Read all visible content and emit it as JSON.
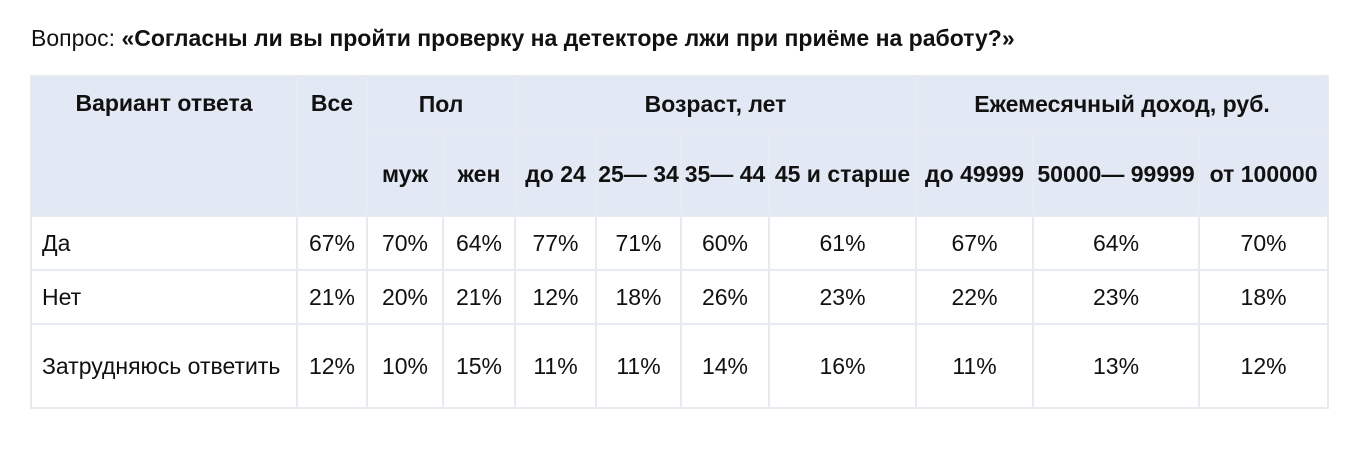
{
  "question": {
    "label": "Вопрос: ",
    "text": "«Согласны ли вы пройти проверку на детекторе лжи при приёме на работу?»"
  },
  "chart_data": {
    "type": "table",
    "headers": {
      "answer": "Вариант ответа",
      "all": "Все",
      "gender": "Пол",
      "age": "Возраст, лет",
      "income": "Ежемесячный доход, руб."
    },
    "subheaders": {
      "male": "муж",
      "female": "жен",
      "age_1": "до 24",
      "age_2": "25— 34",
      "age_3": "35— 44",
      "age_4": "45 и старше",
      "inc_1": "до 49999",
      "inc_2": "50000— 99999",
      "inc_3": "от 100000"
    },
    "rows": [
      {
        "label": "Да",
        "values": [
          "67%",
          "70%",
          "64%",
          "77%",
          "71%",
          "60%",
          "61%",
          "67%",
          "64%",
          "70%"
        ]
      },
      {
        "label": "Нет",
        "values": [
          "21%",
          "20%",
          "21%",
          "12%",
          "18%",
          "26%",
          "23%",
          "22%",
          "23%",
          "18%"
        ]
      },
      {
        "label": "Затрудняюсь ответить",
        "values": [
          "12%",
          "10%",
          "15%",
          "11%",
          "11%",
          "14%",
          "16%",
          "11%",
          "13%",
          "12%"
        ]
      }
    ]
  }
}
